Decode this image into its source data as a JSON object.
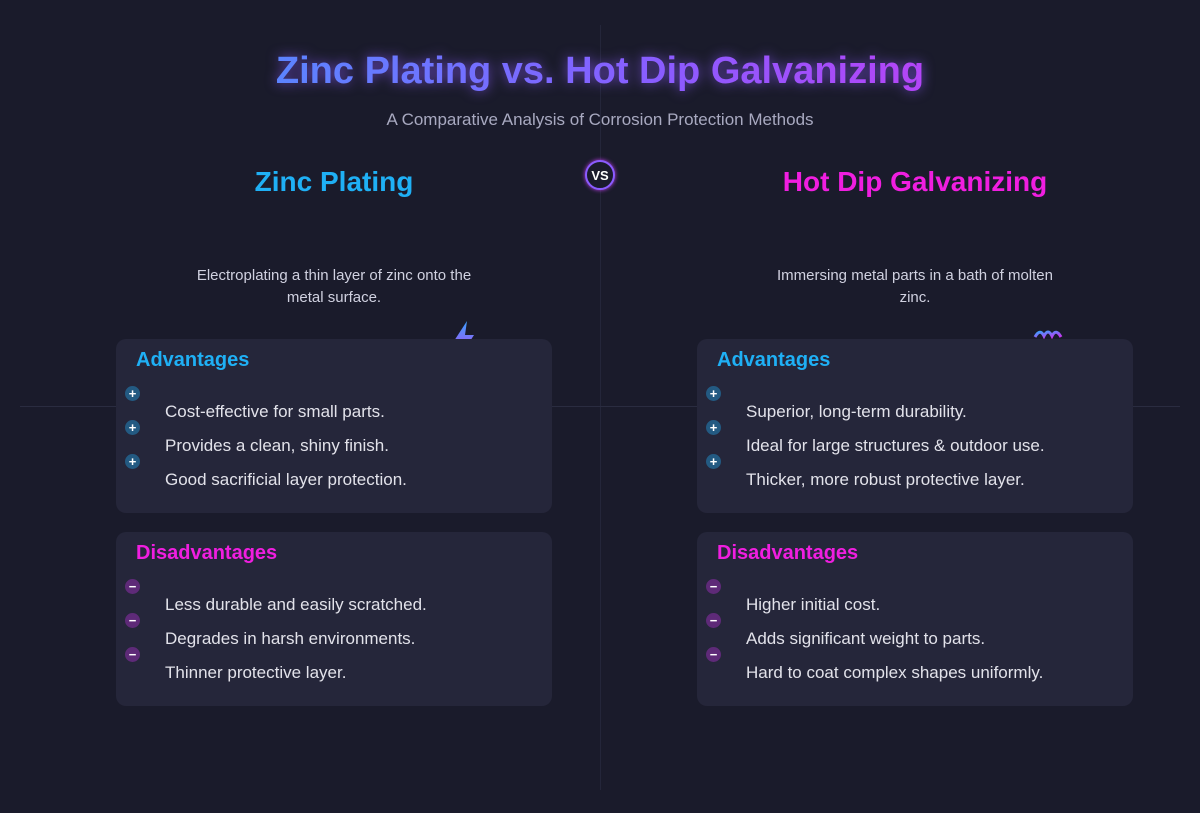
{
  "title": "Zinc Plating vs. Hot Dip Galvanizing",
  "subtitle": "A Comparative Analysis of Corrosion Protection Methods",
  "vs_badge": "VS",
  "colors": {
    "zinc": "#1fb0f5",
    "galv": "#f01ee0",
    "background": "#1a1b2b",
    "card": "#25263a"
  },
  "columns": [
    {
      "heading": "Zinc Plating",
      "icon": "lightning-bolt-icon",
      "description": "Electroplating a thin layer of zinc onto the metal surface.",
      "advantages_label": "Advantages",
      "advantages": [
        "Cost-effective for small parts.",
        "Provides a clean, shiny finish.",
        "Good sacrificial layer protection."
      ],
      "disadvantages_label": "Disadvantages",
      "disadvantages": [
        "Less durable and easily scratched.",
        "Degrades in harsh environments.",
        "Thinner protective layer."
      ]
    },
    {
      "heading": "Hot Dip Galvanizing",
      "icon": "molten-bath-icon",
      "description": "Immersing metal parts in a bath of molten zinc.",
      "advantages_label": "Advantages",
      "advantages": [
        "Superior, long-term durability.",
        "Ideal for large structures & outdoor use.",
        "Thicker, more robust protective layer."
      ],
      "disadvantages_label": "Disadvantages",
      "disadvantages": [
        "Higher initial cost.",
        "Adds significant weight to parts.",
        "Hard to coat complex shapes uniformly."
      ]
    }
  ]
}
